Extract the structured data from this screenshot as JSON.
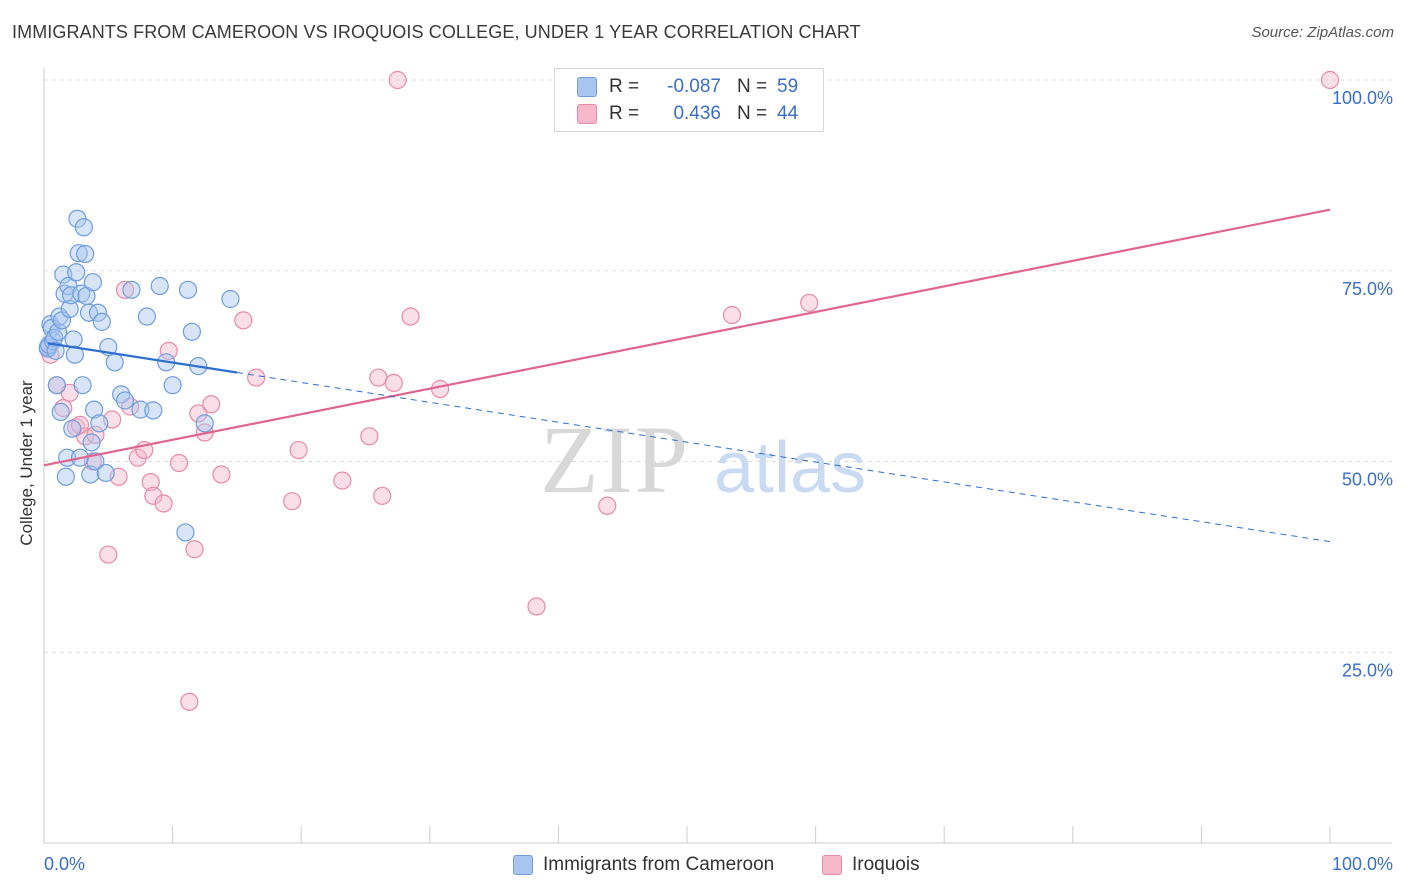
{
  "header": {
    "title": "IMMIGRANTS FROM CAMEROON VS IROQUOIS COLLEGE, UNDER 1 YEAR CORRELATION CHART",
    "source": "Source: ZipAtlas.com"
  },
  "stats": [
    {
      "r_label": "R =",
      "r_value": "-0.087",
      "n_label": "N =",
      "n_value": "59"
    },
    {
      "r_label": "R =",
      "r_value": "0.436",
      "n_label": "N =",
      "n_value": "44"
    }
  ],
  "legend": {
    "series1": "Immigrants from Cameroon",
    "series2": "Iroquois"
  },
  "watermark": {
    "zip": "ZIP",
    "atlas": "atlas"
  },
  "colors": {
    "blue_fill": "#a8c6f0",
    "blue_stroke": "#6f9de0",
    "blue_line": "#2f6fd0",
    "pink_fill": "#f7b8cb",
    "pink_stroke": "#e98aa8",
    "pink_line": "#e0668f",
    "axis_label": "#3a6fc4",
    "grid": "#dddddd"
  },
  "chart_data": {
    "type": "scatter",
    "title": "IMMIGRANTS FROM CAMEROON VS IROQUOIS COLLEGE, UNDER 1 YEAR CORRELATION CHART",
    "xlabel": "",
    "ylabel": "College, Under 1 year",
    "xlim": [
      0,
      100
    ],
    "ylim": [
      0,
      100
    ],
    "x_tick_labels": [
      "0.0%",
      "100.0%"
    ],
    "y_ticks": [
      25,
      50,
      75,
      100
    ],
    "y_tick_labels": [
      "25.0%",
      "50.0%",
      "75.0%",
      "100.0%"
    ],
    "grid": true,
    "series": [
      {
        "name": "Immigrants from Cameroon",
        "r": -0.087,
        "n": 59,
        "trend": {
          "x0": 0.3,
          "y0": 65.5,
          "x1": 100,
          "y1": 39.5,
          "solid_until_x": 15
        },
        "points": [
          [
            0.3,
            65
          ],
          [
            0.3,
            64.8
          ],
          [
            0.4,
            65.3
          ],
          [
            0.5,
            68
          ],
          [
            0.6,
            67.5
          ],
          [
            0.7,
            65.8
          ],
          [
            0.8,
            66.2
          ],
          [
            0.9,
            64.5
          ],
          [
            1.0,
            60
          ],
          [
            1.1,
            67
          ],
          [
            1.2,
            69
          ],
          [
            1.3,
            56.5
          ],
          [
            1.4,
            68.5
          ],
          [
            1.5,
            74.5
          ],
          [
            1.6,
            72
          ],
          [
            1.7,
            48
          ],
          [
            1.8,
            50.5
          ],
          [
            1.9,
            73
          ],
          [
            2.0,
            70
          ],
          [
            2.1,
            71.8
          ],
          [
            2.2,
            54.3
          ],
          [
            2.3,
            66
          ],
          [
            2.4,
            64
          ],
          [
            2.5,
            74.8
          ],
          [
            2.6,
            81.8
          ],
          [
            2.7,
            77.3
          ],
          [
            2.8,
            50.5
          ],
          [
            2.9,
            72
          ],
          [
            3.0,
            60
          ],
          [
            3.1,
            80.7
          ],
          [
            3.2,
            77.2
          ],
          [
            3.3,
            71.7
          ],
          [
            3.5,
            69.5
          ],
          [
            3.6,
            48.3
          ],
          [
            3.7,
            52.5
          ],
          [
            3.8,
            73.5
          ],
          [
            3.9,
            56.8
          ],
          [
            4.0,
            50
          ],
          [
            4.2,
            69.5
          ],
          [
            4.3,
            55
          ],
          [
            4.5,
            68.3
          ],
          [
            4.8,
            48.5
          ],
          [
            5.0,
            65
          ],
          [
            5.5,
            63
          ],
          [
            6.0,
            58.8
          ],
          [
            6.8,
            72.5
          ],
          [
            7.5,
            56.8
          ],
          [
            8.0,
            69
          ],
          [
            8.5,
            56.7
          ],
          [
            9.0,
            73
          ],
          [
            10.0,
            60
          ],
          [
            11.0,
            40.7
          ],
          [
            11.2,
            72.5
          ],
          [
            11.5,
            67
          ],
          [
            12.0,
            62.5
          ],
          [
            12.5,
            55
          ],
          [
            14.5,
            71.3
          ],
          [
            6.3,
            58
          ],
          [
            9.5,
            63
          ]
        ]
      },
      {
        "name": "Iroquois",
        "r": 0.436,
        "n": 44,
        "trend": {
          "x0": 0,
          "y0": 49.5,
          "x1": 100,
          "y1": 83
        },
        "points": [
          [
            1.0,
            60
          ],
          [
            1.5,
            57
          ],
          [
            2.0,
            59
          ],
          [
            2.5,
            54.5
          ],
          [
            3.2,
            53.3
          ],
          [
            3.8,
            50
          ],
          [
            4.0,
            53.5
          ],
          [
            5.0,
            37.8
          ],
          [
            5.3,
            55.5
          ],
          [
            5.8,
            48
          ],
          [
            6.3,
            72.5
          ],
          [
            6.7,
            57.2
          ],
          [
            7.3,
            50.5
          ],
          [
            7.8,
            51.5
          ],
          [
            8.3,
            47.3
          ],
          [
            8.5,
            45.5
          ],
          [
            9.3,
            44.5
          ],
          [
            9.7,
            64.5
          ],
          [
            10.5,
            49.8
          ],
          [
            11.3,
            18.5
          ],
          [
            11.7,
            38.5
          ],
          [
            12.0,
            56.3
          ],
          [
            12.5,
            53.8
          ],
          [
            13.0,
            57.5
          ],
          [
            13.8,
            48.3
          ],
          [
            15.5,
            68.5
          ],
          [
            16.5,
            61
          ],
          [
            19.3,
            44.8
          ],
          [
            19.8,
            51.5
          ],
          [
            23.2,
            47.5
          ],
          [
            25.3,
            53.3
          ],
          [
            26.0,
            61
          ],
          [
            26.3,
            45.5
          ],
          [
            27.2,
            60.3
          ],
          [
            27.5,
            100
          ],
          [
            28.5,
            69
          ],
          [
            30.8,
            59.5
          ],
          [
            38.3,
            31
          ],
          [
            43.8,
            44.2
          ],
          [
            53.5,
            69.2
          ],
          [
            59.5,
            70.8
          ],
          [
            100,
            100
          ],
          [
            0.5,
            64
          ],
          [
            2.8,
            54.8
          ]
        ]
      }
    ]
  }
}
